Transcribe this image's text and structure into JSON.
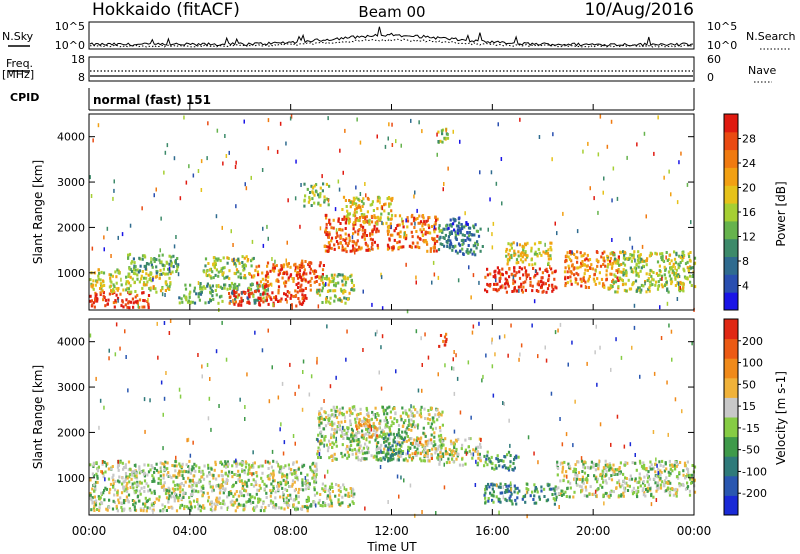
{
  "header": {
    "station": "Hokkaido (fitACF)",
    "beam": "Beam 00",
    "date": "10/Aug/2016"
  },
  "top_panels": {
    "nsky_label": "N.Sky",
    "nsearch_label": "N.Search",
    "noise_ticks": [
      "10^5",
      "10^0"
    ],
    "freq_label_1": "Freq.",
    "freq_label_2": "[MHz]",
    "freq_ticks": [
      "18",
      "8"
    ],
    "nave_ticks": [
      "60",
      "0"
    ],
    "nave_label": "Nave",
    "cpid_label": "CPID",
    "cpid_value": "normal (fast) 151"
  },
  "x_axis": {
    "label": "Time UT",
    "ticks": [
      "00:00",
      "04:00",
      "08:00",
      "12:00",
      "16:00",
      "20:00",
      "00:00"
    ]
  },
  "chart_data": [
    {
      "type": "heatmap",
      "name": "power",
      "ylabel": "Slant Range [km]",
      "yticks": [
        "1000",
        "2000",
        "3000",
        "4000"
      ],
      "ylim": [
        180,
        4500
      ],
      "xlim": [
        0,
        24
      ],
      "colorbar": {
        "label": "Power [dB]",
        "ticks": [
          "4",
          "8",
          "12",
          "16",
          "20",
          "24",
          "28"
        ],
        "colors": [
          "#1a14e6",
          "#2a4fb0",
          "#2f6b8f",
          "#3d8a6a",
          "#66b34d",
          "#a6cf33",
          "#e6c21a",
          "#f2a012",
          "#f07a10",
          "#ea4a12",
          "#e01a10"
        ]
      },
      "regions": [
        {
          "t0": 0.0,
          "t1": 2.4,
          "r0": 250,
          "r1": 600,
          "level": 0.95
        },
        {
          "t0": 0.0,
          "t1": 3.2,
          "r0": 600,
          "r1": 1100,
          "level": 0.55
        },
        {
          "t0": 1.5,
          "t1": 3.5,
          "r0": 1000,
          "r1": 1450,
          "level": 0.4
        },
        {
          "t0": 3.5,
          "t1": 7.0,
          "r0": 350,
          "r1": 800,
          "level": 0.35
        },
        {
          "t0": 5.5,
          "t1": 8.6,
          "r0": 300,
          "r1": 650,
          "level": 0.95
        },
        {
          "t0": 6.5,
          "t1": 8.4,
          "r0": 700,
          "r1": 1250,
          "level": 0.8
        },
        {
          "t0": 4.5,
          "t1": 6.5,
          "r0": 900,
          "r1": 1400,
          "level": 0.5
        },
        {
          "t0": 8.2,
          "t1": 9.3,
          "r0": 650,
          "r1": 1300,
          "level": 0.85
        },
        {
          "t0": 9.3,
          "t1": 11.5,
          "r0": 1500,
          "r1": 2300,
          "level": 0.85
        },
        {
          "t0": 10.0,
          "t1": 12.0,
          "r0": 2100,
          "r1": 2700,
          "level": 0.6
        },
        {
          "t0": 11.8,
          "t1": 13.8,
          "r0": 1500,
          "r1": 2300,
          "level": 0.8
        },
        {
          "t0": 9.0,
          "t1": 10.5,
          "r0": 350,
          "r1": 1000,
          "level": 0.5
        },
        {
          "t0": 13.8,
          "t1": 15.6,
          "r0": 1400,
          "r1": 2100,
          "level": 0.3
        },
        {
          "t0": 14.2,
          "t1": 15.0,
          "r0": 1900,
          "r1": 2250,
          "level": 0.15
        },
        {
          "t0": 15.6,
          "t1": 18.5,
          "r0": 600,
          "r1": 1150,
          "level": 0.92
        },
        {
          "t0": 16.5,
          "t1": 18.3,
          "r0": 1200,
          "r1": 1700,
          "level": 0.55
        },
        {
          "t0": 18.8,
          "t1": 21.0,
          "r0": 700,
          "r1": 1500,
          "level": 0.75
        },
        {
          "t0": 20.5,
          "t1": 24.0,
          "r0": 600,
          "r1": 1500,
          "level": 0.5
        },
        {
          "t0": 13.8,
          "t1": 14.2,
          "r0": 3900,
          "r1": 4200,
          "level": 0.45
        },
        {
          "t0": 8.5,
          "t1": 9.5,
          "r0": 2500,
          "r1": 3000,
          "level": 0.45
        }
      ]
    },
    {
      "type": "heatmap",
      "name": "velocity",
      "ylabel": "Slant Range [km]",
      "yticks": [
        "1000",
        "2000",
        "3000",
        "4000"
      ],
      "ylim": [
        180,
        4500
      ],
      "xlim": [
        0,
        24
      ],
      "colorbar": {
        "label": "Velocity [m s-1]",
        "ticks": [
          "200",
          "100",
          "50",
          "15",
          "-15",
          "-50",
          "-100",
          "-200"
        ],
        "colors": [
          "#1a2ad6",
          "#2a57b0",
          "#2f7a7a",
          "#3f9a4a",
          "#86cc44",
          "#c8c8c8",
          "#f0b23a",
          "#f08a1a",
          "#ec5a14",
          "#e02814"
        ]
      },
      "regions": [
        {
          "t0": 0.0,
          "t1": 9.0,
          "r0": 300,
          "r1": 1400,
          "level": 0.5
        },
        {
          "t0": 9.0,
          "t1": 14.0,
          "r0": 1400,
          "r1": 2600,
          "level": 0.5
        },
        {
          "t0": 10.5,
          "t1": 11.5,
          "r0": 1900,
          "r1": 2300,
          "level": 0.65
        },
        {
          "t0": 11.5,
          "t1": 12.5,
          "r0": 1400,
          "r1": 2000,
          "level": 0.3
        },
        {
          "t0": 12.6,
          "t1": 13.6,
          "r0": 1400,
          "r1": 1900,
          "level": 0.65
        },
        {
          "t0": 13.8,
          "t1": 15.5,
          "r0": 1300,
          "r1": 1900,
          "level": 0.5
        },
        {
          "t0": 15.6,
          "t1": 18.5,
          "r0": 450,
          "r1": 900,
          "level": 0.28
        },
        {
          "t0": 15.6,
          "t1": 17.0,
          "r0": 1200,
          "r1": 1600,
          "level": 0.32
        },
        {
          "t0": 18.5,
          "t1": 24.0,
          "r0": 600,
          "r1": 1400,
          "level": 0.5
        },
        {
          "t0": 9.0,
          "t1": 10.5,
          "r0": 400,
          "r1": 900,
          "level": 0.5
        },
        {
          "t0": 13.8,
          "t1": 14.2,
          "r0": 3900,
          "r1": 4200,
          "level": 0.95
        }
      ]
    }
  ]
}
